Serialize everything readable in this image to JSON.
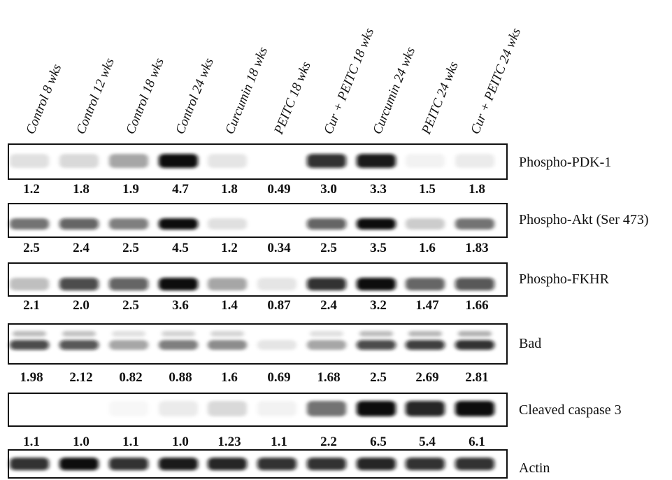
{
  "lanes": [
    "Control 8 wks",
    "Control 12 wks",
    "Control 18 wks",
    "Control 24 wks",
    "Curcumin 18 wks",
    "PEITC 18 wks",
    "Cur + PEITC 18 wks",
    "Curcumin 24 wks",
    "PEITC 24 wks",
    "Cur + PEITC 24 wks"
  ],
  "panels": [
    {
      "protein": "Phospho-PDK-1",
      "band_color": "#0a0a0a",
      "values": [
        "1.2",
        "1.8",
        "1.9",
        "4.7",
        "1.8",
        "0.49",
        "3.0",
        "3.3",
        "1.5",
        "1.8"
      ],
      "intensity": [
        0.12,
        0.15,
        0.35,
        1.0,
        0.1,
        0.0,
        0.85,
        0.95,
        0.05,
        0.08
      ]
    },
    {
      "protein": "Phospho-Akt (Ser 473)",
      "band_color": "#0a0a0a",
      "values": [
        "2.5",
        "2.4",
        "2.5",
        "4.5",
        "1.2",
        "0.34",
        "2.5",
        "3.5",
        "1.6",
        "1.83"
      ],
      "intensity": [
        0.55,
        0.65,
        0.5,
        1.0,
        0.12,
        0.0,
        0.65,
        1.0,
        0.2,
        0.55
      ]
    },
    {
      "protein": "Phospho-FKHR",
      "band_color": "#0a0a0a",
      "values": [
        "2.1",
        "2.0",
        "2.5",
        "3.6",
        "1.4",
        "0.87",
        "2.4",
        "3.2",
        "1.47",
        "1.66"
      ],
      "intensity": [
        0.25,
        0.75,
        0.65,
        1.0,
        0.35,
        0.1,
        0.85,
        1.0,
        0.6,
        0.7
      ]
    },
    {
      "protein": "Bad",
      "band_color": "#0a0a0a",
      "values": [
        "1.98",
        "2.12",
        "0.82",
        "0.88",
        "1.6",
        "0.69",
        "1.68",
        "2.5",
        "2.69",
        "2.81"
      ],
      "intensity": [
        0.75,
        0.7,
        0.35,
        0.5,
        0.45,
        0.1,
        0.35,
        0.75,
        0.8,
        0.85
      ]
    },
    {
      "protein": "Cleaved caspase 3",
      "band_color": "#0a0a0a",
      "values": [
        "1.1",
        "1.0",
        "1.1",
        "1.0",
        "1.23",
        "1.1",
        "2.2",
        "6.5",
        "5.4",
        "6.1"
      ],
      "intensity": [
        0.0,
        0.0,
        0.03,
        0.08,
        0.15,
        0.05,
        0.55,
        1.0,
        0.9,
        1.0
      ]
    },
    {
      "protein": "Actin",
      "band_color": "#0a0a0a",
      "values": [],
      "intensity": [
        0.85,
        1.0,
        0.85,
        0.95,
        0.9,
        0.85,
        0.85,
        0.9,
        0.85,
        0.85
      ]
    }
  ]
}
